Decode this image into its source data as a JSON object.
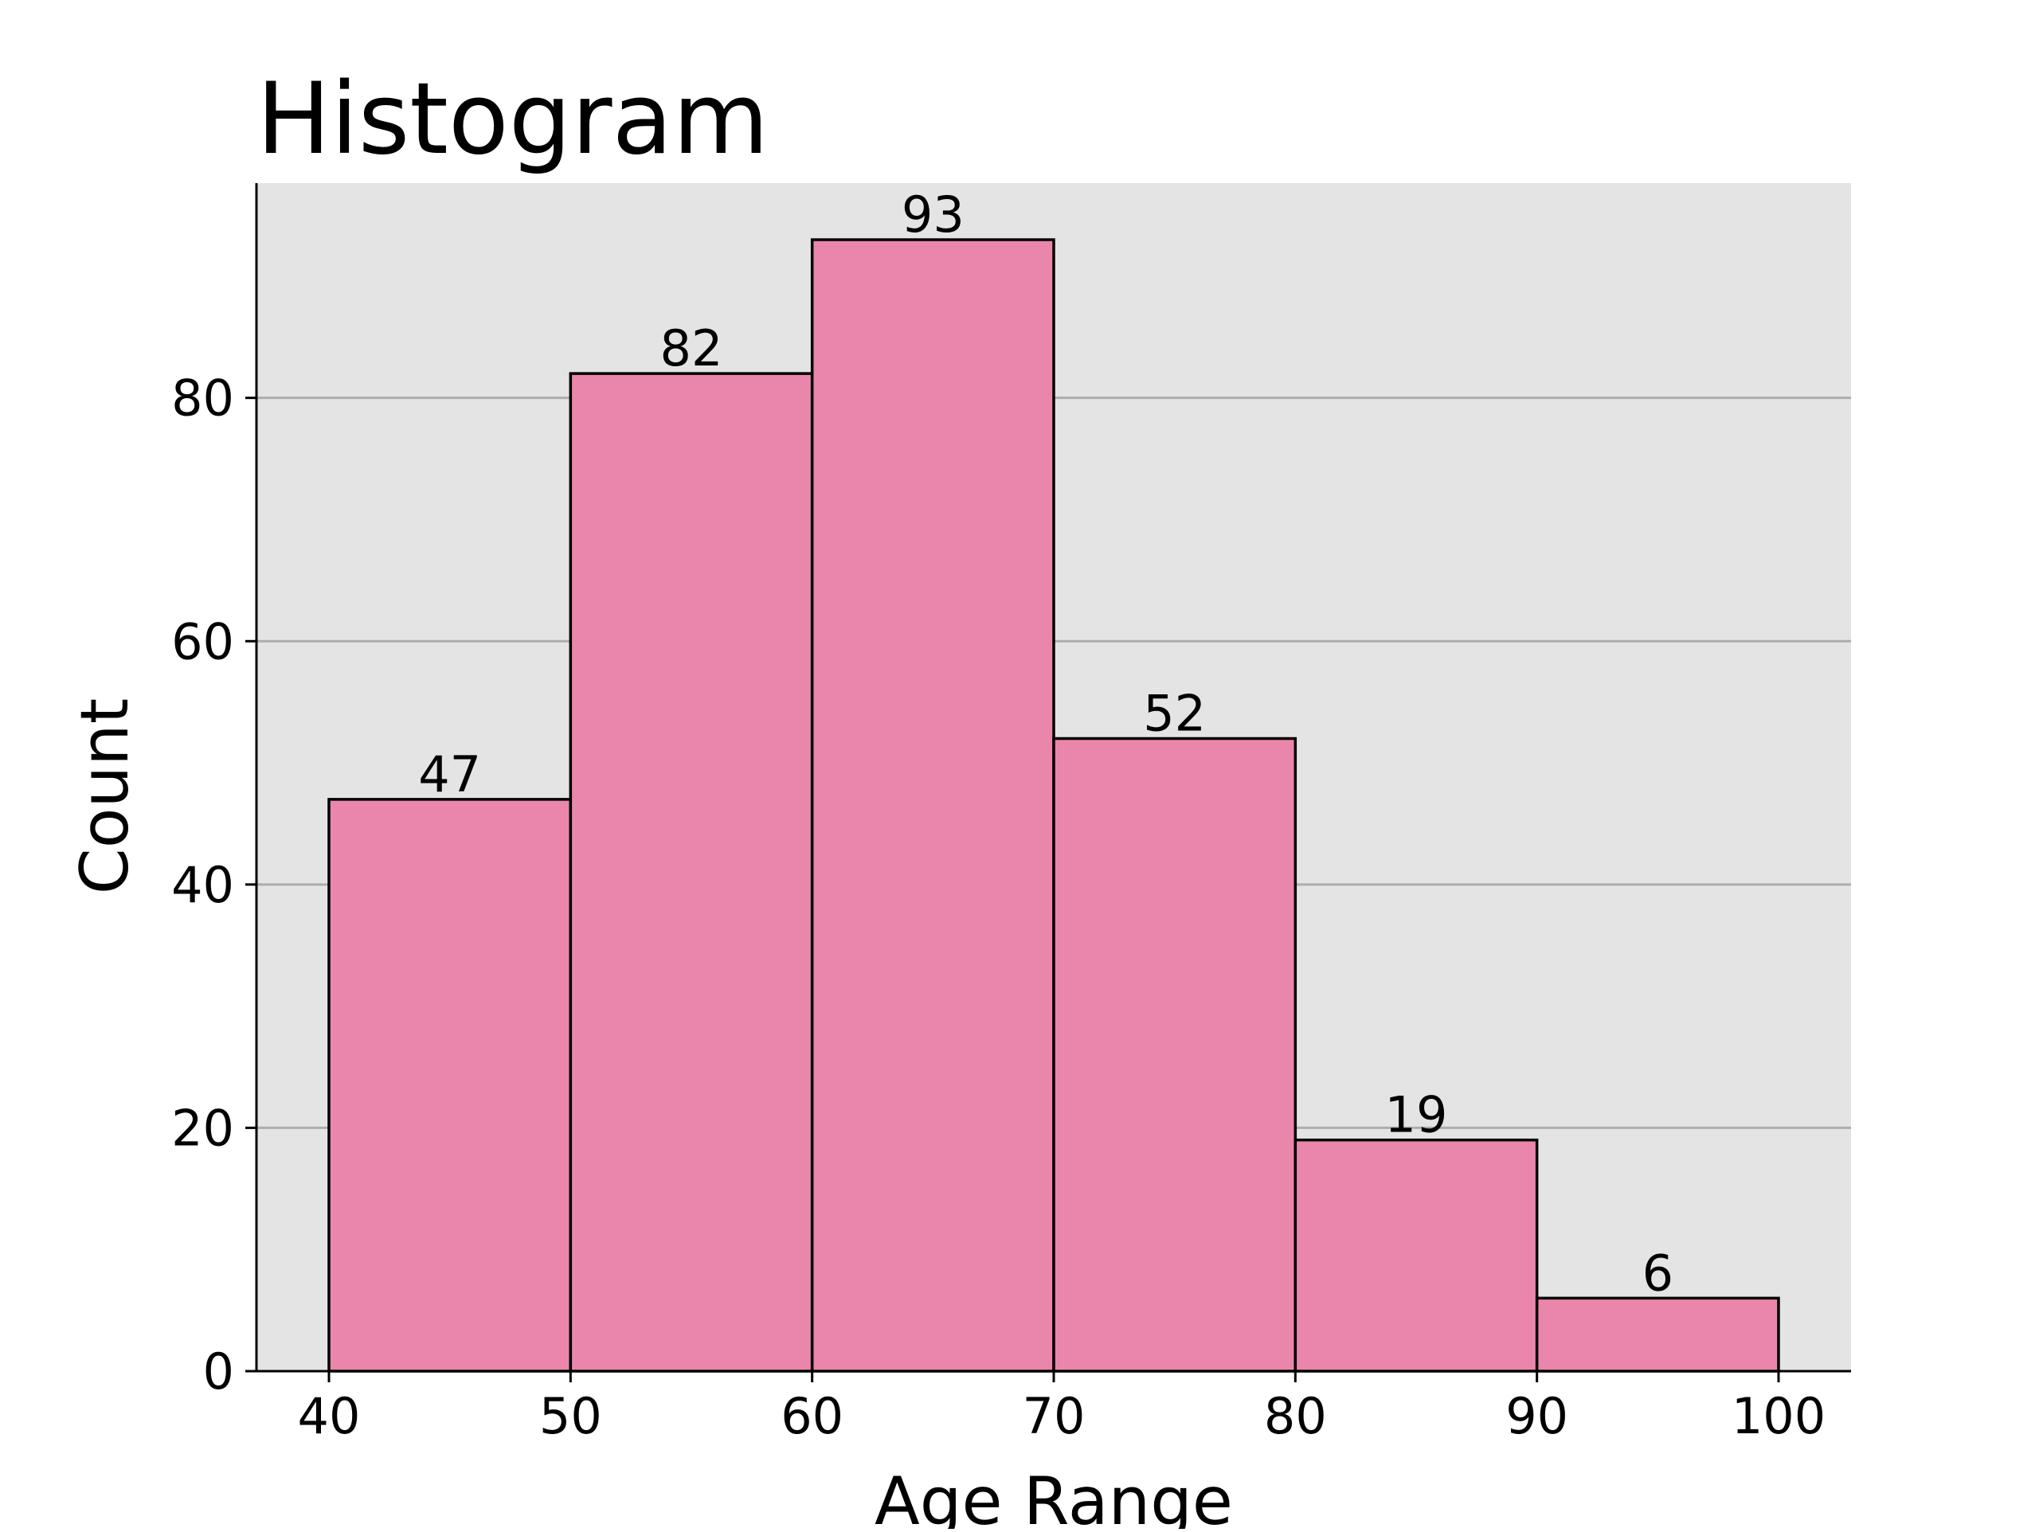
{
  "chart_data": {
    "type": "histogram",
    "title": "Histogram",
    "xlabel": "Age Range",
    "ylabel": "Count",
    "bins": [
      {
        "start": 40,
        "end": 50,
        "count": 47
      },
      {
        "start": 50,
        "end": 60,
        "count": 82
      },
      {
        "start": 60,
        "end": 70,
        "count": 93
      },
      {
        "start": 70,
        "end": 80,
        "count": 52
      },
      {
        "start": 80,
        "end": 90,
        "count": 19
      },
      {
        "start": 90,
        "end": 100,
        "count": 6
      }
    ],
    "x_ticks": [
      40,
      50,
      60,
      70,
      80,
      90,
      100
    ],
    "y_ticks": [
      0,
      20,
      40,
      60,
      80
    ],
    "xlim": [
      37,
      103
    ],
    "ylim": [
      0,
      97.65
    ],
    "grid": "y-axis horizontal lines",
    "data_labels": true,
    "colors": {
      "bar_fill": "#ea86ab",
      "bar_edge": "#000000",
      "plot_background": "#e4e4e4",
      "grid_line": "#adadad"
    }
  }
}
